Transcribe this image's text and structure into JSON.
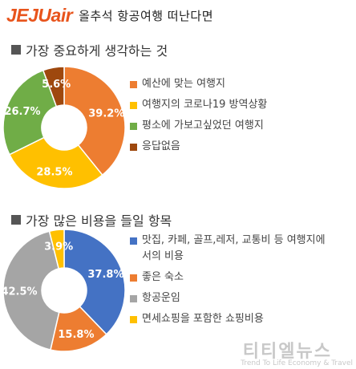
{
  "header": {
    "brand": "JEJUair",
    "headline": "올추석 항공여행 떠난다면"
  },
  "watermark": {
    "main": "티티엘뉴스",
    "sub": "Trend To Life Economy & Travel"
  },
  "chart_data": [
    {
      "type": "pie",
      "title": "가장 중요하게 생각하는 것",
      "categories": [
        "예산에 맞는 여행지",
        "여행지의 코로나19 방역상황",
        "평소에 가보고싶었던 여행지",
        "응답없음"
      ],
      "values": [
        39.2,
        28.5,
        26.7,
        5.6
      ],
      "labels": [
        "39.2%",
        "28.5%",
        "26.7%",
        "5.6%"
      ],
      "colors": [
        "#ed7d31",
        "#ffc000",
        "#70ad47",
        "#9e480e"
      ],
      "label_colors": [
        "#ffffff",
        "#ffffff",
        "#ffffff",
        "#ffffff"
      ],
      "start_angle_deg": 0,
      "legend": "right"
    },
    {
      "type": "pie",
      "title": "가장 많은 비용을 들일 항목",
      "categories": [
        "맛집, 카페, 골프,레저, 교통비 등 여행지에서의 비용",
        "좋은 숙소",
        "항공운임",
        "면세쇼핑을 포함한 쇼핑비용"
      ],
      "values": [
        37.8,
        15.8,
        42.5,
        3.9
      ],
      "labels": [
        "37.8%",
        "15.8%",
        "42.5%",
        "3.9%"
      ],
      "colors": [
        "#4472c4",
        "#ed7d31",
        "#a5a5a5",
        "#ffc000"
      ],
      "label_colors": [
        "#ffffff",
        "#ffffff",
        "#ffffff",
        "#ffffff"
      ],
      "start_angle_deg": 0,
      "legend": "right"
    }
  ]
}
